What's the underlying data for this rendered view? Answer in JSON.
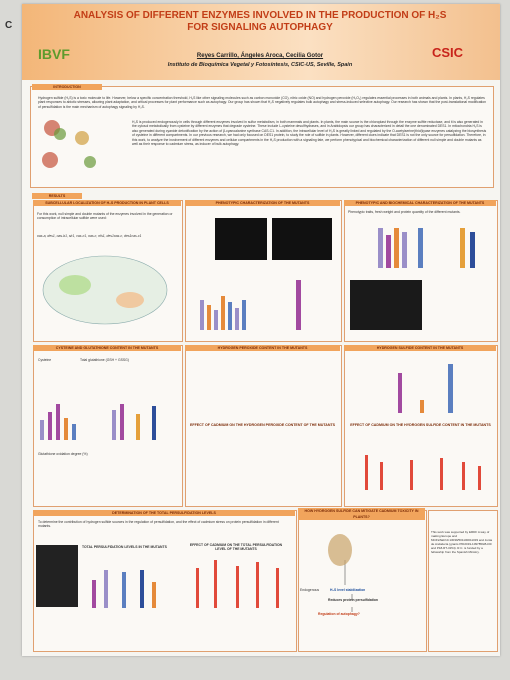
{
  "page_label": "C",
  "header": {
    "title": "ANALYSIS OF DIFFERENT ENZYMES INVOLVED IN THE PRODUCTION OF H₂S FOR SIGNALING AUTOPHAGY",
    "authors": "Reyes Carrillo, Ángeles Aroca, Cecilia Gotor",
    "institute": "Instituto de Bioquímica Vegetal y Fotosíntesis, CSIC-US, Seville, Spain",
    "logo_left": "IBVF",
    "logo_right": "CSIC"
  },
  "introduction": {
    "heading": "INTRODUCTION",
    "paragraph_1": "Hydrogen sulfide (H₂S) is a toxic molecule to life. However, below a specific concentration threshold, H₂S like other signaling molecules such as carbon monoxide (CO), nitric oxide (NO) and hydrogen peroxide (H₂O₂) regulates essential processes in both animals and plants. In plants, H₂S regulates plant responses to abiotic stresses, allowing plant adaptation, and critical processes for plant performance such as autophagy. Our group has shown that H₂S negatively regulates bulk autophagy and stress-induced selective autophagy. Our research has shown that the post-translational modification of persulfidation is the main mechanism of autophagy signaling by H₂S.",
    "paragraph_2": "H₂S is produced endogenously in cells through different enzymes involved in sulfur metabolism, in both mammals and plants. In plants, the main source is the chloroplast through the enzyme sulfite reductase, and it is also generated in the cytosol metabolically from cysteine by different enzymes that degrade cysteine. These include L-cysteine desulfhydrases, and in Arabidopsis our group has characterized in detail the one denominated DES1. In mitochondria H₂S is also generated during cyanide detoxification by the action of β-cyanoalanine synthase CAS-C1. In addition, the intracellular level of H₂S is greatly linked and regulated by the O-acetylserine(thiol)lyase enzymes catalyzing the biosynthesis of cysteine in different compartments. In our previous research, we had only focused on DES1 protein, to study the role of sulfide in plants. However, different clues indicate that DES1 is not the only source for persulfidation. Therefore, in this work, to analyze the involvement of different enzymes and cellular compartments in the H₂S production with a signaling fate, we perform phenotypical and biochemical characterization of different null simple and double mutants as well as their response to cadmium stress, as inducer of bulk autophagy."
  },
  "results": {
    "heading": "RESULTS",
    "sections": [
      {
        "heading": "SUBCELLULAR LOCALIZATION OF H₂S PRODUCTION IN PLANT CELLS",
        "text": "For this work, null simple and double mutants of the enzymes involved in the generation or consumption of intracellular sulfide were used:",
        "list": "oas-a, des1, oas-b1, sir1, cas-c1, oas-c, nfs1, des1oas-c, des1cas-c1"
      },
      {
        "heading": "PHENOTYPIC CHARACTERIZATION OF THE MUTANTS"
      },
      {
        "heading": "PHENOTYPIC AND BIOCHEMICAL CHARACTERIZATION OF THE MUTANTS",
        "text": "Phenotypic traits, fresh weight and protein quantity of the different mutants."
      },
      {
        "heading": "CYSTEINE AND GLUTATHIONE CONTENT IN THE MUTANTS",
        "label_a": "Cysteine",
        "label_b": "Total glutathione (GSH + GSSG)",
        "label_c": "Glutathione oxidation degree (%)"
      },
      {
        "heading": "HYDROGEN PEROXIDE CONTENT IN THE MUTANTS"
      },
      {
        "heading": "HYDROGEN SULFIDE CONTENT IN THE MUTANTS"
      },
      {
        "heading": "EFFECT OF CADMIUM ON THE HYDROGEN PEROXIDE CONTENT OF THE MUTANTS"
      },
      {
        "heading": "EFFECT OF CADMIUM ON THE HYDROGEN SULFIDE CONTENT IN THE MUTANTS"
      },
      {
        "heading": "DETERMINATION OF THE TOTAL PERSULFIDATION LEVELS",
        "text": "To determine the contribution of hydrogen sulfide sources in the regulation of persulfidation, and the effect of cadmium stress on protein persulfidation in different mutants.",
        "chart_a": "TOTAL PERSULFIDATION LEVELS IN THE MUTANTS",
        "chart_b": "EFFECT OF CADMIUM ON THE TOTAL PERSULFIDATION LEVEL OF THE MUTANTS"
      },
      {
        "heading": "HOW HYDROGEN SULFIDE CAN MITIGATE CADMIUM TOXICITY IN PLANTS?",
        "node_1": "Endogenous",
        "node_2": "H₂S level stabilization",
        "node_3": "Reduces protein persulfidation",
        "node_4": "Regulation of autophagy?"
      }
    ]
  },
  "acknowledgements": "This work was supported by ERDF A way of making Europe and MCIN/AEI/10.13039/501100011033 and Junta de Andalucía (grants PID2019-109785GB-I00 and P18-RT-3154). R.C. is funded by a fellowship from the Spanish Ministry."
}
